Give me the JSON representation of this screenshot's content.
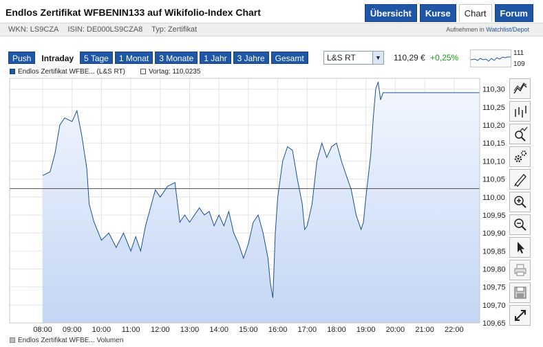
{
  "header": {
    "title": "Endlos Zertifikat WFBENIN133 auf Wikifolio-Index Chart",
    "tabs": [
      {
        "label": "Übersicht",
        "active": false
      },
      {
        "label": "Kurse",
        "active": false
      },
      {
        "label": "Chart",
        "active": true
      },
      {
        "label": "Forum",
        "active": false
      }
    ]
  },
  "meta": {
    "wkn": "WKN: LS9CZA",
    "isin": "ISIN: DE000LS9CZA8",
    "type": "Typ: Zertifikat",
    "watch_prefix": "Aufnehmen in",
    "watch_link": "Watchlist/Depot"
  },
  "periods": [
    {
      "label": "Push",
      "active": false
    },
    {
      "label": "Intraday",
      "active": true
    },
    {
      "label": "5 Tage",
      "active": false
    },
    {
      "label": "1 Monat",
      "active": false
    },
    {
      "label": "3 Monate",
      "active": false
    },
    {
      "label": "1 Jahr",
      "active": false
    },
    {
      "label": "3 Jahre",
      "active": false
    },
    {
      "label": "Gesamt",
      "active": false
    }
  ],
  "exchange_select": {
    "value": "L&S RT"
  },
  "quote": {
    "price": "110,29 €",
    "change": "+0,25%"
  },
  "spark": {
    "high": "111",
    "low": "109"
  },
  "legend": {
    "main": "Endlos Zertifikat WFBE... (L&S RT)",
    "previous": "Vortag: 110,0235"
  },
  "volume_legend": "Endlos Zertifikat WFBE... Volumen",
  "colors": {
    "accent": "#1f57a6",
    "line": "#1a4f93",
    "area_top": "#f3f7fe",
    "area_bottom": "#c3d6f4",
    "positive": "#1a9a1a"
  },
  "tools": [
    "line-chart-icon",
    "ohlc-chart-icon",
    "indicator-zoom-icon",
    "settings-gears-icon",
    "draw-pen-icon",
    "zoom-in-icon",
    "zoom-out-icon",
    "pointer-icon",
    "print-icon",
    "save-icon",
    "fullscreen-icon"
  ],
  "chart_data": {
    "type": "area",
    "y_range": [
      109.65,
      110.33
    ],
    "y_ticks": [
      "110,30",
      "110,25",
      "110,20",
      "110,15",
      "110,10",
      "110,05",
      "110,00",
      "109,95",
      "109,90",
      "109,85",
      "109,80",
      "109,75",
      "109,70",
      "109,65"
    ],
    "x_ticks": [
      "08:00",
      "09:00",
      "10:00",
      "11:00",
      "12:00",
      "13:00",
      "14:00",
      "15:00",
      "16:00",
      "17:00",
      "18:00",
      "19:00",
      "20:00",
      "21:00",
      "22:00"
    ],
    "previous_close": 110.0235,
    "series": [
      {
        "points": [
          [
            "08:00",
            110.06
          ],
          [
            "08:15",
            110.07
          ],
          [
            "08:25",
            110.12
          ],
          [
            "08:35",
            110.2
          ],
          [
            "08:45",
            110.22
          ],
          [
            "09:00",
            110.21
          ],
          [
            "09:10",
            110.24
          ],
          [
            "09:20",
            110.17
          ],
          [
            "09:30",
            110.08
          ],
          [
            "09:35",
            109.98
          ],
          [
            "09:45",
            109.93
          ],
          [
            "10:00",
            109.88
          ],
          [
            "10:15",
            109.9
          ],
          [
            "10:30",
            109.86
          ],
          [
            "10:45",
            109.9
          ],
          [
            "11:00",
            109.85
          ],
          [
            "11:10",
            109.89
          ],
          [
            "11:20",
            109.85
          ],
          [
            "11:30",
            109.92
          ],
          [
            "11:40",
            109.97
          ],
          [
            "11:50",
            110.02
          ],
          [
            "12:00",
            110.0
          ],
          [
            "12:15",
            110.03
          ],
          [
            "12:30",
            110.04
          ],
          [
            "12:40",
            109.93
          ],
          [
            "12:50",
            109.95
          ],
          [
            "13:00",
            109.93
          ],
          [
            "13:10",
            109.95
          ],
          [
            "13:20",
            109.97
          ],
          [
            "13:30",
            109.95
          ],
          [
            "13:40",
            109.96
          ],
          [
            "13:50",
            109.92
          ],
          [
            "14:00",
            109.95
          ],
          [
            "14:10",
            109.92
          ],
          [
            "14:20",
            109.96
          ],
          [
            "14:30",
            109.9
          ],
          [
            "14:40",
            109.87
          ],
          [
            "14:50",
            109.83
          ],
          [
            "15:00",
            109.87
          ],
          [
            "15:10",
            109.93
          ],
          [
            "15:20",
            109.95
          ],
          [
            "15:30",
            109.9
          ],
          [
            "15:40",
            109.83
          ],
          [
            "15:45",
            109.76
          ],
          [
            "15:50",
            109.72
          ],
          [
            "15:55",
            109.9
          ],
          [
            "16:00",
            110.0
          ],
          [
            "16:10",
            110.1
          ],
          [
            "16:20",
            110.14
          ],
          [
            "16:30",
            110.13
          ],
          [
            "16:40",
            110.05
          ],
          [
            "16:50",
            109.98
          ],
          [
            "16:55",
            109.91
          ],
          [
            "17:00",
            109.92
          ],
          [
            "17:10",
            109.98
          ],
          [
            "17:20",
            110.1
          ],
          [
            "17:30",
            110.15
          ],
          [
            "17:40",
            110.11
          ],
          [
            "17:50",
            110.14
          ],
          [
            "18:00",
            110.15
          ],
          [
            "18:10",
            110.1
          ],
          [
            "18:20",
            110.06
          ],
          [
            "18:30",
            110.02
          ],
          [
            "18:40",
            109.95
          ],
          [
            "18:50",
            109.91
          ],
          [
            "18:55",
            109.93
          ],
          [
            "19:00",
            110.0
          ],
          [
            "19:10",
            110.12
          ],
          [
            "19:15",
            110.22
          ],
          [
            "19:20",
            110.3
          ],
          [
            "19:25",
            110.32
          ],
          [
            "19:30",
            110.27
          ],
          [
            "19:35",
            110.29
          ],
          [
            "19:45",
            110.29
          ],
          [
            "20:00",
            110.29
          ],
          [
            "22:00",
            110.29
          ],
          [
            "23:00",
            110.29
          ]
        ]
      }
    ]
  }
}
